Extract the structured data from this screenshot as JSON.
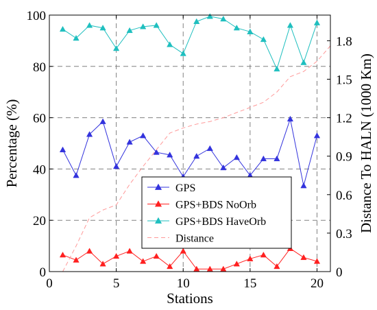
{
  "chart_data": {
    "type": "line",
    "xlabel": "Stations",
    "ylabel_left": "Percentage (%)",
    "ylabel_right": "Distance To HALN (1000 Km)",
    "xlim": [
      0,
      21
    ],
    "ylim_left": [
      0,
      100
    ],
    "ylim_right": [
      0,
      2.0
    ],
    "x_ticks": [
      0,
      5,
      10,
      15,
      20
    ],
    "y_ticks_left": [
      0,
      20,
      40,
      60,
      80,
      100
    ],
    "y_ticks_right": [
      0,
      0.3,
      0.6,
      0.9,
      1.2,
      1.5,
      1.8
    ],
    "y_tick_labels_right": [
      "0",
      "0.3",
      "0.6",
      "0.9",
      "1.2",
      "1.5",
      "1.8"
    ],
    "grid": true,
    "grid_style": "dashed",
    "legend_position": "lower-center",
    "x": [
      1,
      2,
      3,
      4,
      5,
      6,
      7,
      8,
      9,
      10,
      11,
      12,
      13,
      14,
      15,
      16,
      17,
      18,
      19,
      20
    ],
    "series": [
      {
        "name": "GPS",
        "axis": "left",
        "color": "#3333dd",
        "marker": "triangle",
        "values": [
          47.5,
          37.5,
          53.5,
          58.5,
          41,
          50.5,
          53,
          46.5,
          45.5,
          37,
          45,
          48,
          40.5,
          44.5,
          37.5,
          44,
          44,
          59.5,
          33.5,
          53
        ]
      },
      {
        "name": "GPS+BDS NoOrb",
        "axis": "left",
        "color": "#ff2020",
        "marker": "triangle",
        "values": [
          6.5,
          4.5,
          8,
          3,
          6,
          8,
          4,
          6,
          2,
          8,
          1,
          1,
          1,
          3,
          5,
          6.5,
          2,
          9,
          5.5,
          4
        ]
      },
      {
        "name": "GPS+BDS HaveOrb",
        "axis": "left",
        "color": "#1fbfbf",
        "marker": "triangle",
        "values": [
          94.5,
          91,
          96,
          95,
          87,
          94,
          95.5,
          96,
          88.5,
          85,
          97.5,
          99.5,
          98.5,
          95,
          93.5,
          90.5,
          79,
          96,
          81.5,
          97
        ]
      },
      {
        "name": "Distance",
        "axis": "right",
        "color": "#ff9999",
        "style": "dashed",
        "x": [
          1,
          2,
          3,
          4,
          5,
          6,
          7,
          8,
          9,
          10,
          11,
          12,
          13,
          14,
          15,
          16,
          17,
          18,
          19,
          20,
          21
        ],
        "values": [
          0,
          0.2,
          0.42,
          0.48,
          0.52,
          0.68,
          0.82,
          0.95,
          1.08,
          1.12,
          1.15,
          1.17,
          1.2,
          1.24,
          1.28,
          1.32,
          1.4,
          1.52,
          1.56,
          1.64,
          1.76
        ]
      }
    ]
  }
}
